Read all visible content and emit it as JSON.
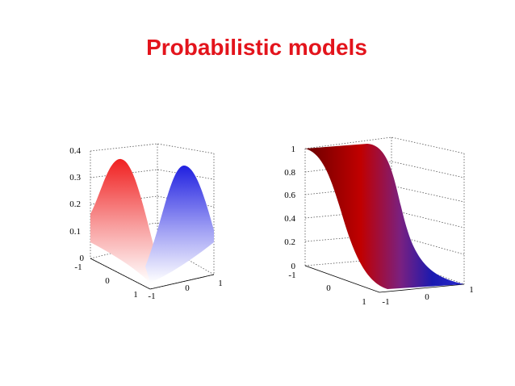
{
  "title": "Probabilistic models",
  "plots": [
    {
      "zticks": [
        "0.4",
        "0.3",
        "0.2",
        "0.1",
        "0"
      ],
      "xticks": [
        "-1",
        "0",
        "1"
      ],
      "yticks": [
        "-1",
        "0",
        "1"
      ]
    },
    {
      "zticks": [
        "1",
        "0.8",
        "0.6",
        "0.4",
        "0.2",
        "0"
      ],
      "xticks": [
        "-1",
        "0",
        "1"
      ],
      "yticks": [
        "-1",
        "0",
        "1"
      ]
    }
  ]
}
